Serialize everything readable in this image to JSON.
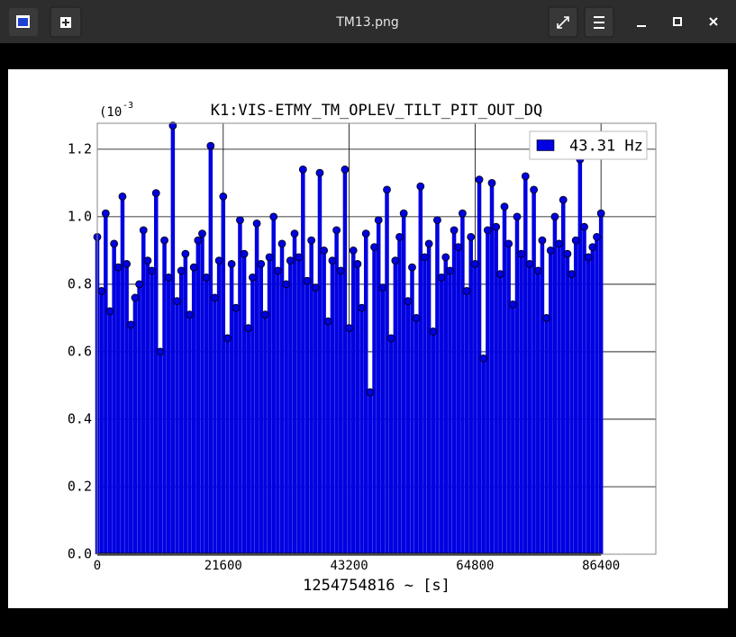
{
  "window": {
    "title": "TM13.png"
  },
  "chart_data": {
    "type": "stem",
    "title": "K1:VIS-ETMY_TM_OPLEV_TILT_PIT_OUT_DQ",
    "x_label": "1254754816 ~ [s]",
    "y_offset_label": {
      "base": "(10",
      "exponent": "-3"
    },
    "xlim": [
      0,
      95800
    ],
    "ylim": [
      0,
      1.277
    ],
    "xticks": [
      0,
      21600,
      43200,
      64800,
      86400
    ],
    "yticks": [
      {
        "value": 0,
        "label": "0.0"
      },
      0.2,
      0.4,
      0.6,
      0.8,
      {
        "value": 1,
        "label": "1.0"
      },
      1.2
    ],
    "grid": true,
    "legend": "upper right",
    "series": [
      {
        "name": "43.31 Hz",
        "color": "#0000e0",
        "x": [
          0,
          720,
          1440,
          2160,
          2880,
          3600,
          4320,
          5040,
          5760,
          6480,
          7200,
          7920,
          8640,
          9360,
          10080,
          10800,
          11520,
          12240,
          12960,
          13680,
          14400,
          15120,
          15840,
          16560,
          17280,
          18000,
          18720,
          19440,
          20160,
          20880,
          21600,
          22320,
          23040,
          23760,
          24480,
          25200,
          25920,
          26640,
          27360,
          28080,
          28800,
          29520,
          30240,
          30960,
          31680,
          32400,
          33120,
          33840,
          34560,
          35280,
          36000,
          36720,
          37440,
          38160,
          38880,
          39600,
          40320,
          41040,
          41760,
          42480,
          43200,
          43920,
          44640,
          45360,
          46080,
          46800,
          47520,
          48240,
          48960,
          49680,
          50400,
          51120,
          51840,
          52560,
          53280,
          54000,
          54720,
          55440,
          56160,
          56880,
          57600,
          58320,
          59040,
          59760,
          60480,
          61200,
          61920,
          62640,
          63360,
          64080,
          64800,
          65520,
          66240,
          66960,
          67680,
          68400,
          69120,
          69840,
          70560,
          71280,
          72000,
          72720,
          73440,
          74160,
          74880,
          75600,
          76320,
          77040,
          77760,
          78480,
          79200,
          79920,
          80640,
          81360,
          82080,
          82800,
          83520,
          84240,
          84960,
          85680,
          86400
        ],
        "values": [
          0.94,
          0.78,
          1.01,
          0.72,
          0.92,
          0.85,
          1.06,
          0.86,
          0.68,
          0.76,
          0.8,
          0.96,
          0.87,
          0.84,
          1.07,
          0.6,
          0.93,
          0.82,
          1.27,
          0.75,
          0.84,
          0.89,
          0.71,
          0.85,
          0.93,
          0.95,
          0.82,
          1.21,
          0.76,
          0.87,
          1.06,
          0.64,
          0.86,
          0.73,
          0.99,
          0.89,
          0.67,
          0.82,
          0.98,
          0.86,
          0.71,
          0.88,
          1.0,
          0.84,
          0.92,
          0.8,
          0.87,
          0.95,
          0.88,
          1.14,
          0.81,
          0.93,
          0.79,
          1.13,
          0.9,
          0.69,
          0.87,
          0.96,
          0.84,
          1.14,
          0.67,
          0.9,
          0.86,
          0.73,
          0.95,
          0.48,
          0.91,
          0.99,
          0.79,
          1.08,
          0.64,
          0.87,
          0.94,
          1.01,
          0.75,
          0.85,
          0.7,
          1.09,
          0.88,
          0.92,
          0.66,
          0.99,
          0.82,
          0.88,
          0.84,
          0.96,
          0.91,
          1.01,
          0.78,
          0.94,
          0.86,
          1.11,
          0.58,
          0.96,
          1.1,
          0.97,
          0.83,
          1.03,
          0.92,
          0.74,
          1.0,
          0.89,
          1.12,
          0.86,
          1.08,
          0.84,
          0.93,
          0.7,
          0.9,
          1.0,
          0.92,
          1.05,
          0.89,
          0.83,
          0.93,
          1.17,
          0.97,
          0.88,
          0.91,
          0.94,
          1.01
        ]
      }
    ]
  }
}
